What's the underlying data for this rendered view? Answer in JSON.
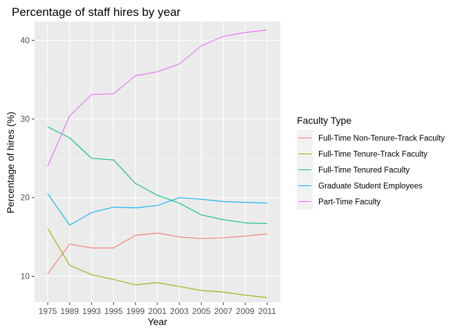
{
  "chart_data": {
    "type": "line",
    "title": "Percentage of staff hires by year",
    "xlabel": "Year",
    "ylabel": "Percentage of hires (%)",
    "categories": [
      "1975",
      "1989",
      "1993",
      "1995",
      "1999",
      "2001",
      "2003",
      "2005",
      "2007",
      "2009",
      "2011"
    ],
    "ylim": [
      6.7,
      42.4
    ],
    "yticks": [
      10,
      20,
      30,
      40
    ],
    "grid": true,
    "legend": {
      "title": "Faculty Type",
      "position": "right"
    },
    "series": [
      {
        "name": "Full-Time Non-Tenure-Track Faculty",
        "color": "#F8766D",
        "values": [
          10.3,
          14.1,
          13.6,
          13.6,
          15.2,
          15.5,
          15.0,
          14.8,
          14.9,
          15.1,
          15.4
        ]
      },
      {
        "name": "Full-Time Tenure-Track Faculty",
        "color": "#A3A500",
        "values": [
          16.1,
          11.4,
          10.2,
          9.6,
          8.9,
          9.2,
          8.7,
          8.2,
          8.0,
          7.6,
          7.3
        ]
      },
      {
        "name": "Full-Time Tenured Faculty",
        "color": "#00BF7D",
        "values": [
          29.0,
          27.6,
          25.0,
          24.8,
          21.8,
          20.3,
          19.3,
          17.8,
          17.2,
          16.8,
          16.7
        ]
      },
      {
        "name": "Graduate Student Employees",
        "color": "#00B0F6",
        "values": [
          20.5,
          16.5,
          18.1,
          18.8,
          18.7,
          19.0,
          20.0,
          19.8,
          19.5,
          19.4,
          19.3
        ]
      },
      {
        "name": "Part-Time Faculty",
        "color": "#E76BF3",
        "values": [
          24.0,
          30.4,
          33.1,
          33.2,
          35.5,
          36.0,
          37.0,
          39.3,
          40.5,
          41.0,
          41.3
        ]
      }
    ]
  }
}
